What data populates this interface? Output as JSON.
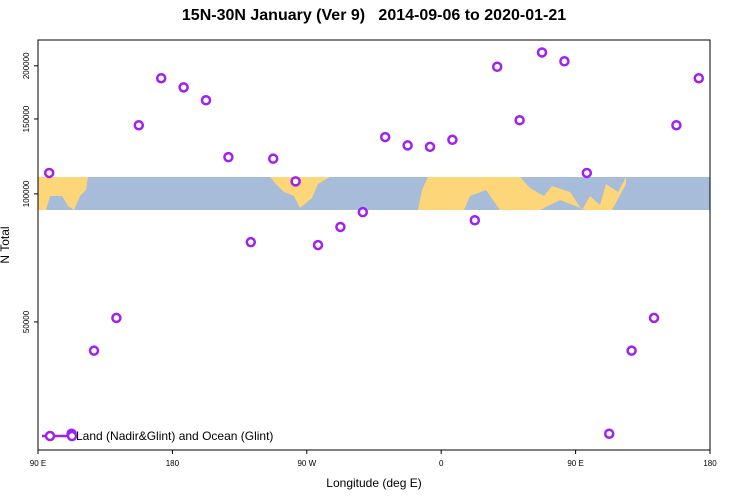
{
  "chart_data": {
    "type": "scatter",
    "title": "15N-30N January (Ver 9)   2014-09-06 to 2020-01-21",
    "x_label": "Longitude (deg E)",
    "y_label": "N Total",
    "xlim": [
      90,
      540
    ],
    "ylim": [
      25000,
      230000
    ],
    "ylog": true,
    "xticks": [
      {
        "value": 90,
        "label": "90 E"
      },
      {
        "value": 180,
        "label": "180"
      },
      {
        "value": 270,
        "label": "90 W"
      },
      {
        "value": 360,
        "label": "0"
      },
      {
        "value": 450,
        "label": "90 E"
      },
      {
        "value": 540,
        "label": "180"
      }
    ],
    "yticks": [
      50000,
      100000,
      150000,
      200000
    ],
    "legend_position": "bottomleft",
    "series": [
      {
        "name": "Land (Nadir&Glint) and Ocean (Glint)",
        "color": "#a020f0",
        "x": [
          97.5,
          112.5,
          127.5,
          142.5,
          157.5,
          172.5,
          187.5,
          202.5,
          217.5,
          232.5,
          247.5,
          262.5,
          277.5,
          292.5,
          307.5,
          322.5,
          337.5,
          352.5,
          367.5,
          382.5,
          397.5,
          412.5,
          427.5,
          442.5,
          457.5,
          472.5,
          487.5,
          502.5,
          517.5,
          532.5
        ],
        "values": [
          112000,
          27300,
          42800,
          51100,
          145000,
          187000,
          178000,
          166000,
          122000,
          77000,
          121000,
          107000,
          75800,
          83600,
          90600,
          136000,
          130000,
          129000,
          134000,
          86700,
          199000,
          149000,
          215000,
          205000,
          112000,
          27300,
          42800,
          51100,
          145000,
          187000
        ]
      }
    ]
  }
}
